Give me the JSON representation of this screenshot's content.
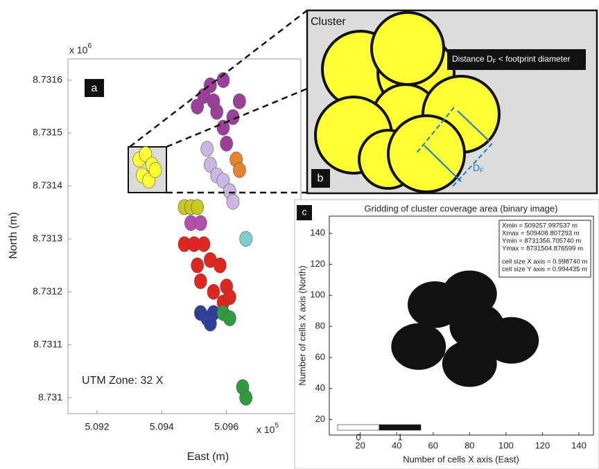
{
  "chart_data": [
    {
      "type": "scatter",
      "panel_label": "a",
      "xlabel": "East (m)",
      "ylabel": "North (m)",
      "x_offset_label": "x 10",
      "x_offset_exp": "5",
      "y_offset_label": "x 10",
      "y_offset_exp": "6",
      "annotation": "UTM Zone: 32 X",
      "xlim": [
        5.0911,
        5.0983
      ],
      "xticks": [
        5.092,
        5.094,
        5.096
      ],
      "ylim": [
        8.73097,
        8.73164
      ],
      "yticks": [
        8.731,
        8.7311,
        8.7312,
        8.7313,
        8.7314,
        8.7315,
        8.7316
      ],
      "series": [
        {
          "color": "#9b3f9b",
          "x": [
            5.0951,
            5.0953,
            5.0955,
            5.0959,
            5.0957,
            5.0964,
            5.0959,
            5.096,
            5.0956,
            5.0962
          ],
          "y": [
            8.73155,
            8.73157,
            8.73159,
            8.7316,
            8.73154,
            8.73156,
            8.73151,
            8.73148,
            8.73156,
            8.73153
          ]
        },
        {
          "color": "#ffff33",
          "x": [
            5.0933,
            5.0935,
            5.0937,
            5.0934,
            5.0936,
            5.0938
          ],
          "y": [
            8.73145,
            8.73146,
            8.73144,
            8.73142,
            8.73141,
            8.73143
          ]
        },
        {
          "color": "#cbb8e0",
          "x": [
            5.0954,
            5.0955,
            5.0957,
            5.0959,
            5.0961,
            5.0962
          ],
          "y": [
            8.73147,
            8.73144,
            8.73142,
            8.73141,
            8.73139,
            8.73137
          ]
        },
        {
          "color": "#e8832a",
          "x": [
            5.0963,
            5.0964
          ],
          "y": [
            8.73145,
            8.73143
          ]
        },
        {
          "color": "#c8c81e",
          "x": [
            5.0947,
            5.0949,
            5.0951
          ],
          "y": [
            8.73136,
            8.73136,
            8.73136
          ]
        },
        {
          "color": "#b44fb0",
          "x": [
            5.0949,
            5.0952
          ],
          "y": [
            8.73133,
            8.73133
          ]
        },
        {
          "color": "#7fcfcf",
          "x": [
            5.0966
          ],
          "y": [
            8.7313
          ]
        },
        {
          "color": "#e0261e",
          "x": [
            5.0947,
            5.095,
            5.0953,
            5.0951,
            5.0955,
            5.0958,
            5.0952,
            5.096,
            5.0956,
            5.0961,
            5.0959
          ],
          "y": [
            8.73129,
            8.73129,
            8.73129,
            8.73125,
            8.73126,
            8.73125,
            8.73122,
            8.73121,
            8.7312,
            8.73119,
            8.73118
          ]
        },
        {
          "color": "#2e3f9b",
          "x": [
            5.0952,
            5.0954,
            5.0956,
            5.0955
          ],
          "y": [
            8.73116,
            8.73115,
            8.73116,
            8.73114
          ]
        },
        {
          "color": "#2e9b3f",
          "x": [
            5.0959,
            5.0961,
            5.0965,
            5.0966
          ],
          "y": [
            8.73116,
            8.73115,
            8.73102,
            8.731
          ]
        }
      ]
    },
    {
      "type": "binary_image",
      "panel_label": "c",
      "title": "Gridding of  cluster coverage area (binary image)",
      "xlabel": "Number of cells X axis (East)",
      "ylabel": "Number of cells X axis (North)",
      "xlim": [
        3,
        148
      ],
      "xticks": [
        20,
        40,
        60,
        80,
        100,
        120,
        140
      ],
      "ylim": [
        10,
        151
      ],
      "yticks": [
        20,
        40,
        60,
        80,
        100,
        120,
        140
      ],
      "info": [
        "Xmin = 509257.997537 m",
        "Xmax = 509408.807293 m",
        "Ymin = 8731356.705740 m",
        "Ymax = 8731504.876599 m",
        "cell size X axis = 0.998740 m",
        "cell size Y axis = 0.994435 m"
      ],
      "colorbar": [
        {
          "value": 0,
          "color": "#ffffff"
        },
        {
          "value": 1,
          "color": "#111111"
        }
      ],
      "footprint_diameter": 30,
      "series": [
        {
          "color": "#111111",
          "x": [
            61,
            80,
            103,
            80,
            52,
            84
          ],
          "y": [
            94,
            101,
            71,
            56,
            67,
            80
          ]
        }
      ]
    }
  ],
  "inset": {
    "title": "Cluster",
    "panel_label": "b",
    "note_pre": "Distance D",
    "note_sub": "F",
    "note_post": " < footprint diameter",
    "dim_main": "D",
    "dim_sub": "F"
  }
}
